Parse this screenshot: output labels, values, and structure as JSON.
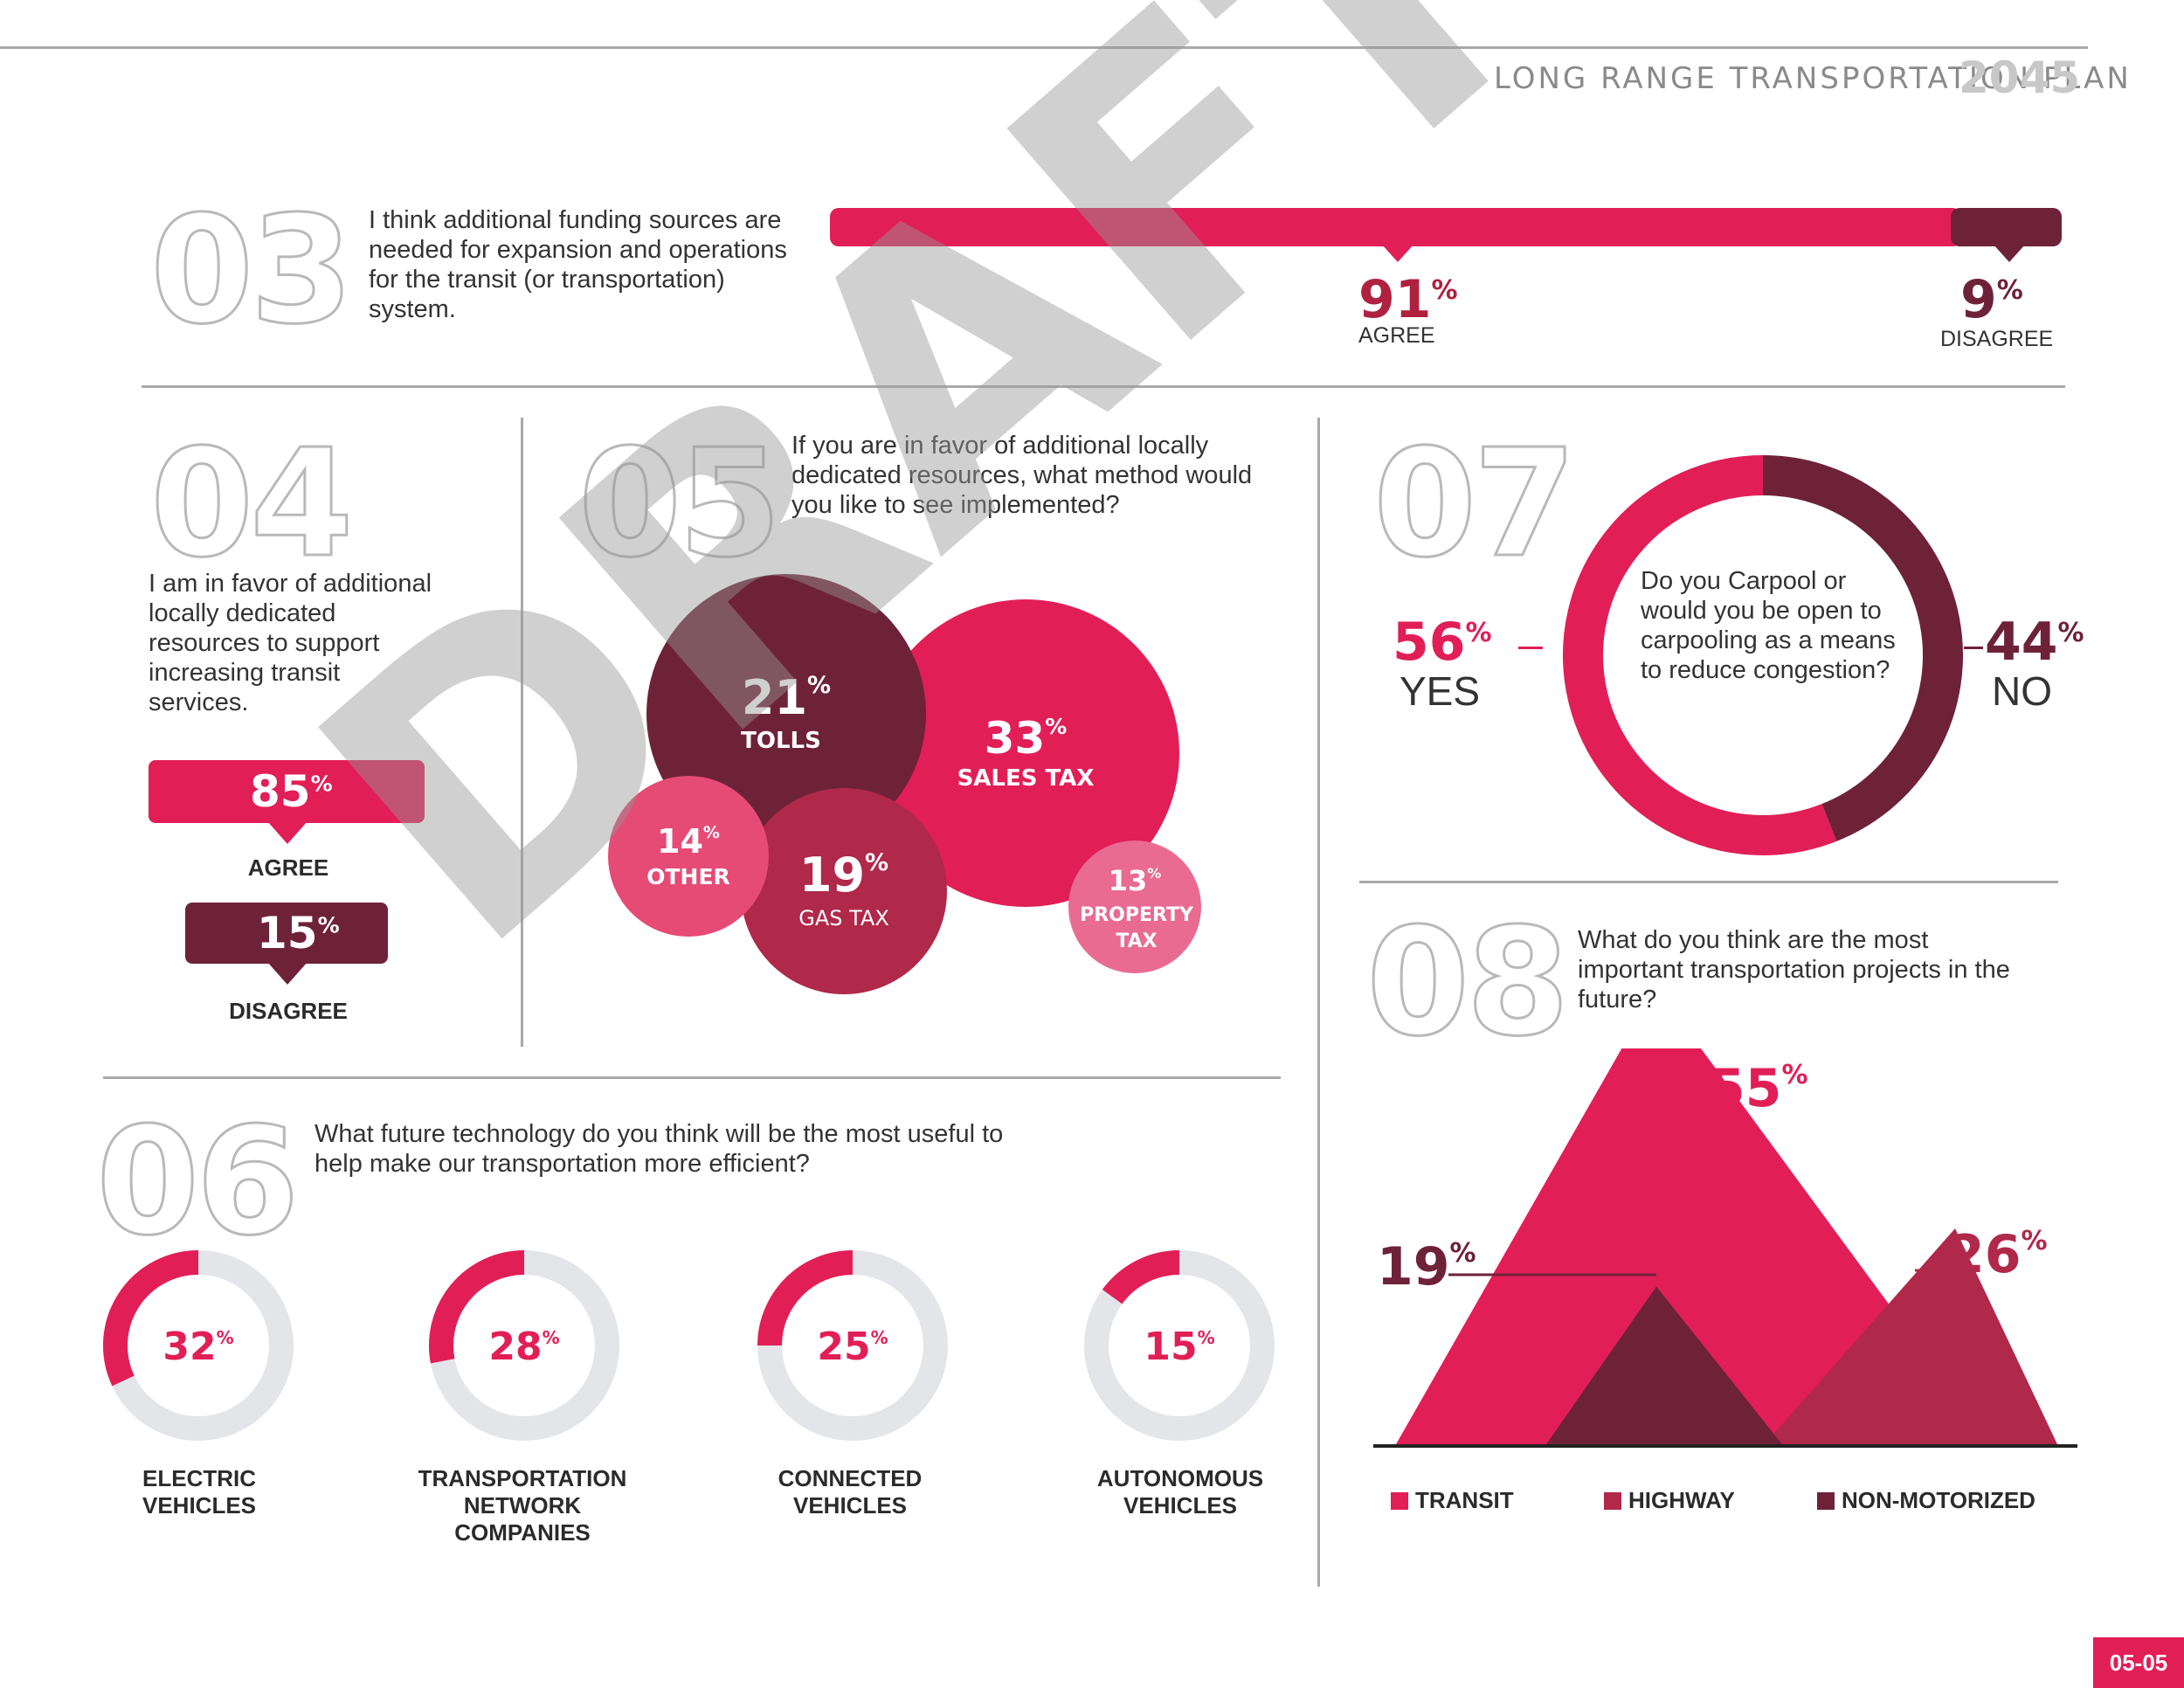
{
  "header": {
    "plan_title": "LONG RANGE TRANSPORTATION PLAN",
    "year": "2045"
  },
  "watermark": "DRAFT",
  "page_number": "05-05",
  "colors": {
    "pink": "#e21e57",
    "maroon": "#6e2238",
    "raspberry": "#b0284a",
    "light_pink": "#e96b91",
    "gray_track": "#e4e5e8"
  },
  "q03": {
    "number": "03",
    "question": "I think additional funding sources are needed for expansion and operations for the transit (or transportation) system.",
    "agree_pct": "91",
    "agree_label": "AGREE",
    "disagree_pct": "9",
    "disagree_label": "DISAGREE"
  },
  "q04": {
    "number": "04",
    "question": "I am in favor of additional locally dedicated resources to support increasing transit services.",
    "agree_pct": "85",
    "agree_label": "AGREE",
    "disagree_pct": "15",
    "disagree_label": "DISAGREE"
  },
  "q05": {
    "number": "05",
    "question": "If you are in favor of additional locally dedicated resources, what method would you like to see implemented?"
  },
  "q06": {
    "number": "06",
    "question": "What future technology do you think will be the most useful to help make our transportation more efficient?"
  },
  "q07": {
    "number": "07",
    "question": "Do you Carpool or would you be open to carpooling as a means to reduce congestion?",
    "yes_pct": "56",
    "yes_label": "YES",
    "no_pct": "44",
    "no_label": "NO"
  },
  "q08": {
    "number": "08",
    "question": "What do you think are the most important transportation projects in the future?",
    "legend": [
      "TRANSIT",
      "HIGHWAY",
      "NON-MOTORIZED"
    ]
  },
  "chart_data": [
    {
      "type": "bar",
      "id": "q03",
      "categories": [
        "AGREE",
        "DISAGREE"
      ],
      "values": [
        91,
        9
      ]
    },
    {
      "type": "bar",
      "id": "q04",
      "categories": [
        "AGREE",
        "DISAGREE"
      ],
      "values": [
        85,
        15
      ]
    },
    {
      "type": "scatter",
      "id": "q05",
      "categories": [
        "SALES TAX",
        "TOLLS",
        "GAS TAX",
        "OTHER",
        "PROPERTY TAX"
      ],
      "values": [
        33,
        21,
        19,
        14,
        13
      ]
    },
    {
      "type": "pie",
      "id": "q06",
      "categories": [
        "ELECTRIC VEHICLES",
        "TRANSPORTATION NETWORK COMPANIES",
        "CONNECTED VEHICLES",
        "AUTONOMOUS VEHICLES"
      ],
      "values": [
        32,
        28,
        25,
        15
      ]
    },
    {
      "type": "pie",
      "id": "q07",
      "categories": [
        "YES",
        "NO"
      ],
      "values": [
        56,
        44
      ]
    },
    {
      "type": "area",
      "id": "q08",
      "categories": [
        "TRANSIT",
        "HIGHWAY",
        "NON-MOTORIZED"
      ],
      "values": [
        55,
        26,
        19
      ]
    }
  ]
}
